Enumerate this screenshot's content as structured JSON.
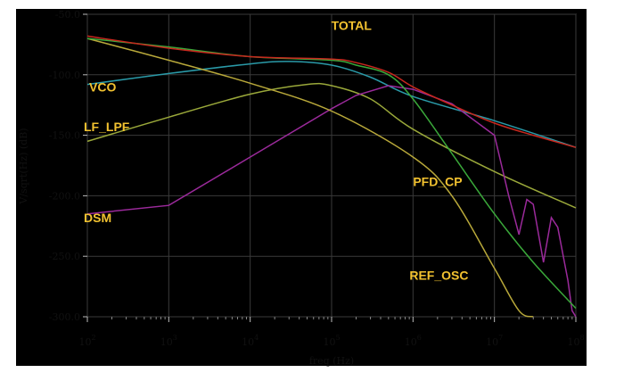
{
  "chart_data": {
    "type": "line",
    "title": "",
    "xlabel": "freq (Hz)",
    "ylabel": "V/sqrt(Hz) (dB)",
    "xscale": "log",
    "xlim": [
      100,
      100000000
    ],
    "ylim": [
      -300,
      -50
    ],
    "grid": true,
    "x_ticks": [
      {
        "base": "10",
        "exp": "2"
      },
      {
        "base": "10",
        "exp": "3"
      },
      {
        "base": "10",
        "exp": "4"
      },
      {
        "base": "10",
        "exp": "5"
      },
      {
        "base": "10",
        "exp": "6"
      },
      {
        "base": "10",
        "exp": "7"
      },
      {
        "base": "10",
        "exp": "8"
      }
    ],
    "y_ticks": [
      "-50.0",
      "-100.0",
      "-150.0",
      "-200.0",
      "-250.0",
      "-300.0"
    ],
    "series": [
      {
        "name": "VCO",
        "color": "#2a9aa8",
        "x": [
          100,
          1000,
          10000,
          30000,
          100000,
          300000,
          1000000,
          10000000,
          100000000
        ],
        "y": [
          -108,
          -99,
          -91,
          -89,
          -92,
          -102,
          -118,
          -138,
          -160
        ]
      },
      {
        "name": "LF_LPF",
        "color": "#9aa83a",
        "x": [
          100,
          1000,
          10000,
          50000,
          100000,
          300000,
          1000000,
          10000000,
          100000000
        ],
        "y": [
          -155,
          -135,
          -116,
          -108,
          -109,
          -120,
          -145,
          -180,
          -210
        ]
      },
      {
        "name": "DSM",
        "color": "#9b2a9b",
        "x": [
          100,
          1000,
          10000,
          100000,
          200000,
          500000,
          1000000,
          3000000,
          10000000,
          15000000,
          20000000,
          25000000,
          30000000,
          40000000,
          50000000,
          60000000,
          70000000,
          80000000,
          90000000,
          100000000
        ],
        "y": [
          -215,
          -208,
          -168,
          -128,
          -117,
          -109,
          -112,
          -124,
          -150,
          -200,
          -232,
          -203,
          -207,
          -255,
          -218,
          -226,
          -250,
          -270,
          -295,
          -300
        ]
      },
      {
        "name": "REF_OSC",
        "color": "#b8a83a",
        "x": [
          100,
          1000,
          10000,
          100000,
          1000000,
          3000000,
          10000000,
          20000000,
          30000000
        ],
        "y": [
          -70,
          -88,
          -107,
          -130,
          -168,
          -200,
          -260,
          -295,
          -300
        ]
      },
      {
        "name": "PFD_CP",
        "color": "#3aa83a",
        "x": [
          100,
          1000,
          10000,
          100000,
          200000,
          500000,
          1000000,
          3000000,
          10000000,
          30000000,
          100000000
        ],
        "y": [
          -70,
          -77,
          -85,
          -88,
          -92,
          -100,
          -120,
          -165,
          -215,
          -255,
          -293
        ]
      },
      {
        "name": "TOTAL",
        "color": "#c8281e",
        "x": [
          100,
          1000,
          10000,
          100000,
          200000,
          500000,
          1000000,
          3000000,
          10000000,
          30000000,
          100000000
        ],
        "y": [
          -68,
          -78,
          -85,
          -87,
          -90,
          -98,
          -110,
          -125,
          -140,
          -150,
          -160
        ]
      }
    ],
    "annotations": [
      {
        "text": "TOTAL",
        "x": 300000,
        "y": -60
      },
      {
        "text": "VCO",
        "x": 100,
        "y": -105
      },
      {
        "text": "LF_LPF",
        "x": 100,
        "y": -142
      },
      {
        "text": "DSM",
        "x": 100,
        "y": -216
      },
      {
        "text": "PFD_CP",
        "x": 1000000,
        "y": -186
      },
      {
        "text": "REF_OSC",
        "x": 1000000,
        "y": -262
      }
    ]
  }
}
